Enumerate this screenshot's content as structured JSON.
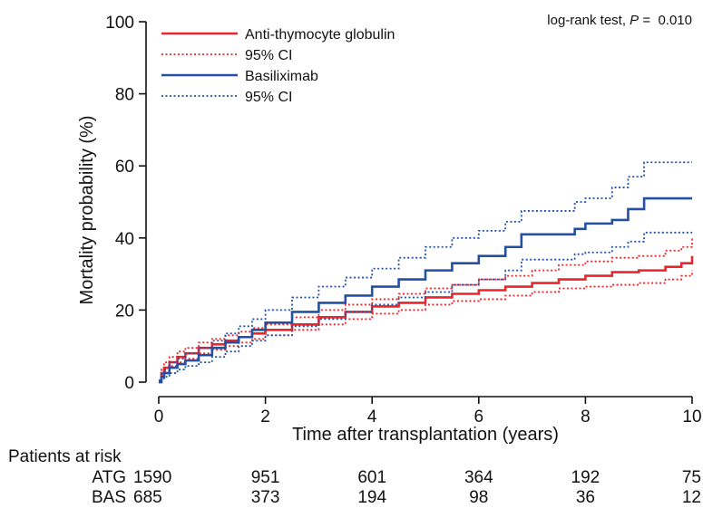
{
  "chart_data": {
    "type": "line",
    "step": true,
    "xlabel": "Time after transplantation (years)",
    "ylabel": "Mortality probability (%)",
    "xlim": [
      0,
      10
    ],
    "ylim": [
      0,
      100
    ],
    "xticks": [
      0,
      2,
      4,
      6,
      8,
      10
    ],
    "yticks": [
      0,
      20,
      40,
      60,
      80,
      100
    ],
    "grid": false,
    "legend_position": "top-left",
    "annotation": {
      "prefix": "log-rank test, ",
      "p_symbol": "P",
      "value": " =  0.010"
    },
    "series": [
      {
        "name": "Anti-thymocyte globulin",
        "color": "#e8262b",
        "style": "solid",
        "x": [
          0,
          0.05,
          0.1,
          0.2,
          0.35,
          0.5,
          0.75,
          1,
          1.25,
          1.5,
          1.75,
          2,
          2.5,
          3,
          3.5,
          4,
          4.5,
          5,
          5.5,
          6,
          6.5,
          7,
          7.5,
          8,
          8.5,
          9,
          9.5,
          9.8,
          10
        ],
        "y": [
          0,
          2.5,
          4,
          5.5,
          7,
          8,
          9.5,
          10.5,
          11.5,
          12.5,
          13.5,
          14.5,
          16,
          18,
          19.5,
          21,
          22,
          23.5,
          24.5,
          25.5,
          26.5,
          27.5,
          28.5,
          29.5,
          30.5,
          31,
          32,
          33,
          35
        ]
      },
      {
        "name": "95% CI",
        "color": "#e8262b",
        "style": "dotted",
        "x": [
          0,
          0.05,
          0.1,
          0.2,
          0.35,
          0.5,
          0.75,
          1,
          1.25,
          1.5,
          1.75,
          2,
          2.5,
          3,
          3.5,
          4,
          4.5,
          5,
          5.5,
          6,
          6.5,
          7,
          7.5,
          8,
          8.5,
          9,
          9.5,
          9.8,
          10
        ],
        "y": [
          0.5,
          3.5,
          5.5,
          7,
          8.5,
          9.5,
          11,
          12,
          13,
          14,
          15,
          16,
          18,
          20,
          21.5,
          23,
          24.5,
          26,
          27,
          28.5,
          29.5,
          31,
          32.5,
          33.5,
          34.5,
          35,
          36.5,
          37.5,
          40
        ]
      },
      {
        "name": "",
        "color": "#e8262b",
        "style": "dotted",
        "x": [
          0,
          0.05,
          0.1,
          0.2,
          0.35,
          0.5,
          0.75,
          1,
          1.25,
          1.5,
          1.75,
          2,
          2.5,
          3,
          3.5,
          4,
          4.5,
          5,
          5.5,
          6,
          6.5,
          7,
          7.5,
          8,
          8.5,
          9,
          9.5,
          9.8,
          10
        ],
        "y": [
          0,
          1.5,
          3,
          4.5,
          5.5,
          6.5,
          8,
          9,
          10,
          11,
          12,
          13,
          14.5,
          16,
          17.5,
          19,
          20,
          21.5,
          22.5,
          23,
          24,
          25,
          26,
          26.5,
          27,
          27.5,
          28.5,
          29.5,
          31
        ]
      },
      {
        "name": "Basiliximab",
        "color": "#2250a3",
        "style": "solid",
        "x": [
          0,
          0.05,
          0.1,
          0.2,
          0.35,
          0.5,
          0.75,
          1,
          1.25,
          1.5,
          1.75,
          2,
          2.5,
          3,
          3.5,
          4,
          4.5,
          5,
          5.5,
          6,
          6.5,
          6.8,
          7.5,
          7.8,
          8,
          8.5,
          8.8,
          9.1,
          10
        ],
        "y": [
          0,
          1.5,
          2.5,
          4,
          5,
          6,
          7.5,
          9.5,
          11,
          12.5,
          14.5,
          16.5,
          19.5,
          22,
          24,
          26.5,
          28.5,
          31,
          33,
          35,
          37.5,
          41,
          41,
          42.5,
          44,
          45,
          48,
          51,
          51
        ]
      },
      {
        "name": "95% CI",
        "color": "#2250a3",
        "style": "dotted",
        "x": [
          0,
          0.05,
          0.1,
          0.2,
          0.35,
          0.5,
          0.75,
          1,
          1.25,
          1.5,
          1.75,
          2,
          2.5,
          3,
          3.5,
          4,
          4.5,
          5,
          5.5,
          6,
          6.5,
          6.8,
          7.5,
          7.8,
          8,
          8.5,
          8.8,
          9.1,
          10
        ],
        "y": [
          0.5,
          2.5,
          3.5,
          5.5,
          6.5,
          8,
          9.5,
          11.5,
          13.5,
          15.5,
          17.5,
          20,
          23.5,
          26.5,
          29,
          31.5,
          34.5,
          37.5,
          40,
          42,
          44.5,
          47.5,
          47.5,
          50,
          51,
          54,
          57,
          61,
          61
        ]
      },
      {
        "name": "",
        "color": "#2250a3",
        "style": "dotted",
        "x": [
          0,
          0.05,
          0.1,
          0.2,
          0.35,
          0.5,
          0.75,
          1,
          1.25,
          1.5,
          1.75,
          2,
          2.5,
          3,
          3.5,
          4,
          4.5,
          5,
          5.5,
          6,
          6.5,
          6.8,
          7.5,
          7.8,
          8,
          8.5,
          8.8,
          9.1,
          10
        ],
        "y": [
          0,
          1,
          1.5,
          2.5,
          3.5,
          4.5,
          5.5,
          7,
          8.5,
          10,
          11.5,
          13,
          15.5,
          17.5,
          19.5,
          21.5,
          23.5,
          25,
          27,
          28.5,
          31,
          34,
          34,
          35.5,
          36,
          37.5,
          39,
          41.5,
          41.5
        ]
      }
    ],
    "risk_table": {
      "title": "Patients at risk",
      "times": [
        0,
        2,
        4,
        6,
        8,
        10
      ],
      "rows": [
        {
          "label": "ATG",
          "values": [
            "1590",
            "951",
            "601",
            "364",
            "192",
            "75"
          ]
        },
        {
          "label": "BAS",
          "values": [
            "685",
            "373",
            "194",
            "98",
            "36",
            "12"
          ]
        }
      ]
    }
  }
}
